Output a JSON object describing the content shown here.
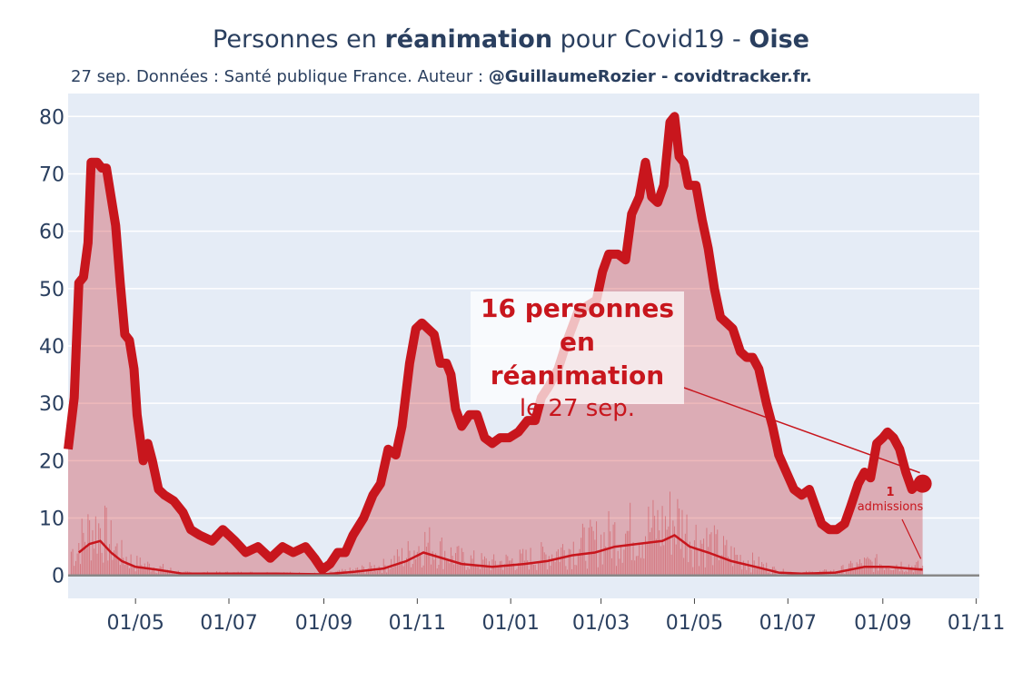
{
  "header": {
    "title_pre": "Personnes en ",
    "title_bold1": "réanimation",
    "title_mid": " pour Covid19 - ",
    "title_bold2": "Oise",
    "subtitle_pre": "27 sep. Données : Santé publique France. Auteur : ",
    "subtitle_bold": "@GuillaumeRozier - covidtracker.fr."
  },
  "annotation": {
    "line1": "16 personnes",
    "line2": "en réanimation",
    "line3": "le 27 sep.",
    "admissions_value": "1",
    "admissions_label": "admissions"
  },
  "colors": {
    "plot_bg": "#e5ecf6",
    "grid": "#ffffff",
    "line": "#c8161d",
    "fill": "rgba(200,22,29,0.30)",
    "zero_line": "#888888"
  },
  "chart_data": {
    "type": "area",
    "ylim": [
      -4,
      84
    ],
    "xlim": [
      "2020-03-18",
      "2021-11-03"
    ],
    "y_ticks": [
      0,
      10,
      20,
      30,
      40,
      50,
      60,
      70,
      80
    ],
    "x_ticks": [
      {
        "date": "2020-05-01",
        "label": "01/05"
      },
      {
        "date": "2020-07-01",
        "label": "01/07"
      },
      {
        "date": "2020-09-01",
        "label": "01/09"
      },
      {
        "date": "2020-11-01",
        "label": "01/11"
      },
      {
        "date": "2021-01-01",
        "label": "01/01"
      },
      {
        "date": "2021-03-01",
        "label": "01/03"
      },
      {
        "date": "2021-05-01",
        "label": "01/05"
      },
      {
        "date": "2021-07-01",
        "label": "01/07"
      },
      {
        "date": "2021-09-01",
        "label": "01/09"
      },
      {
        "date": "2021-11-01",
        "label": "01/11"
      }
    ],
    "series": [
      {
        "role": "reanimation",
        "points": [
          [
            "2020-03-18",
            22
          ],
          [
            "2020-03-22",
            31
          ],
          [
            "2020-03-25",
            51
          ],
          [
            "2020-03-28",
            52
          ],
          [
            "2020-03-31",
            58
          ],
          [
            "2020-04-02",
            72
          ],
          [
            "2020-04-06",
            72
          ],
          [
            "2020-04-09",
            71
          ],
          [
            "2020-04-12",
            71
          ],
          [
            "2020-04-15",
            66
          ],
          [
            "2020-04-18",
            61
          ],
          [
            "2020-04-21",
            51
          ],
          [
            "2020-04-24",
            42
          ],
          [
            "2020-04-27",
            41
          ],
          [
            "2020-04-30",
            36
          ],
          [
            "2020-05-02",
            28
          ],
          [
            "2020-05-06",
            20
          ],
          [
            "2020-05-09",
            23
          ],
          [
            "2020-05-12",
            20
          ],
          [
            "2020-05-16",
            15
          ],
          [
            "2020-05-20",
            14
          ],
          [
            "2020-05-26",
            13
          ],
          [
            "2020-06-01",
            11
          ],
          [
            "2020-06-06",
            8
          ],
          [
            "2020-06-12",
            7
          ],
          [
            "2020-06-20",
            6
          ],
          [
            "2020-06-27",
            8
          ],
          [
            "2020-07-05",
            6
          ],
          [
            "2020-07-12",
            4
          ],
          [
            "2020-07-20",
            5
          ],
          [
            "2020-07-28",
            3
          ],
          [
            "2020-08-05",
            5
          ],
          [
            "2020-08-12",
            4
          ],
          [
            "2020-08-20",
            5
          ],
          [
            "2020-08-26",
            3
          ],
          [
            "2020-08-31",
            1
          ],
          [
            "2020-09-05",
            2
          ],
          [
            "2020-09-10",
            4
          ],
          [
            "2020-09-15",
            4
          ],
          [
            "2020-09-20",
            7
          ],
          [
            "2020-09-27",
            10
          ],
          [
            "2020-10-03",
            14
          ],
          [
            "2020-10-08",
            16
          ],
          [
            "2020-10-13",
            22
          ],
          [
            "2020-10-18",
            21
          ],
          [
            "2020-10-22",
            26
          ],
          [
            "2020-10-27",
            37
          ],
          [
            "2020-10-31",
            43
          ],
          [
            "2020-11-04",
            44
          ],
          [
            "2020-11-08",
            43
          ],
          [
            "2020-11-12",
            42
          ],
          [
            "2020-11-16",
            37
          ],
          [
            "2020-11-20",
            37
          ],
          [
            "2020-11-23",
            35
          ],
          [
            "2020-11-26",
            29
          ],
          [
            "2020-11-30",
            26
          ],
          [
            "2020-12-05",
            28
          ],
          [
            "2020-12-10",
            28
          ],
          [
            "2020-12-15",
            24
          ],
          [
            "2020-12-20",
            23
          ],
          [
            "2020-12-25",
            24
          ],
          [
            "2020-12-31",
            24
          ],
          [
            "2021-01-06",
            25
          ],
          [
            "2021-01-12",
            27
          ],
          [
            "2021-01-17",
            27
          ],
          [
            "2021-01-21",
            31
          ],
          [
            "2021-01-26",
            33
          ],
          [
            "2021-02-01",
            36
          ],
          [
            "2021-02-07",
            41
          ],
          [
            "2021-02-14",
            46
          ],
          [
            "2021-02-20",
            47
          ],
          [
            "2021-02-26",
            48
          ],
          [
            "2021-03-02",
            53
          ],
          [
            "2021-03-06",
            56
          ],
          [
            "2021-03-12",
            56
          ],
          [
            "2021-03-17",
            55
          ],
          [
            "2021-03-21",
            63
          ],
          [
            "2021-03-26",
            66
          ],
          [
            "2021-03-30",
            72
          ],
          [
            "2021-04-03",
            66
          ],
          [
            "2021-04-07",
            65
          ],
          [
            "2021-04-11",
            68
          ],
          [
            "2021-04-15",
            79
          ],
          [
            "2021-04-18",
            80
          ],
          [
            "2021-04-21",
            73
          ],
          [
            "2021-04-24",
            72
          ],
          [
            "2021-04-27",
            68
          ],
          [
            "2021-05-02",
            68
          ],
          [
            "2021-05-06",
            62
          ],
          [
            "2021-05-10",
            57
          ],
          [
            "2021-05-14",
            50
          ],
          [
            "2021-05-18",
            45
          ],
          [
            "2021-05-22",
            44
          ],
          [
            "2021-05-26",
            43
          ],
          [
            "2021-05-31",
            39
          ],
          [
            "2021-06-04",
            38
          ],
          [
            "2021-06-08",
            38
          ],
          [
            "2021-06-12",
            36
          ],
          [
            "2021-06-17",
            30
          ],
          [
            "2021-06-21",
            26
          ],
          [
            "2021-06-25",
            21
          ],
          [
            "2021-06-30",
            18
          ],
          [
            "2021-07-05",
            15
          ],
          [
            "2021-07-10",
            14
          ],
          [
            "2021-07-15",
            15
          ],
          [
            "2021-07-19",
            12
          ],
          [
            "2021-07-23",
            9
          ],
          [
            "2021-07-28",
            8
          ],
          [
            "2021-08-02",
            8
          ],
          [
            "2021-08-07",
            9
          ],
          [
            "2021-08-11",
            12
          ],
          [
            "2021-08-16",
            16
          ],
          [
            "2021-08-20",
            18
          ],
          [
            "2021-08-24",
            17
          ],
          [
            "2021-08-28",
            23
          ],
          [
            "2021-09-01",
            24
          ],
          [
            "2021-09-04",
            25
          ],
          [
            "2021-09-08",
            24
          ],
          [
            "2021-09-12",
            22
          ],
          [
            "2021-09-16",
            18
          ],
          [
            "2021-09-20",
            15
          ],
          [
            "2021-09-24",
            16
          ],
          [
            "2021-09-27",
            16
          ]
        ]
      },
      {
        "role": "admissions (moyenne)",
        "points": [
          [
            "2020-03-25",
            4
          ],
          [
            "2020-04-01",
            5.5
          ],
          [
            "2020-04-08",
            6
          ],
          [
            "2020-04-15",
            4
          ],
          [
            "2020-04-22",
            2.5
          ],
          [
            "2020-05-01",
            1.5
          ],
          [
            "2020-05-15",
            1
          ],
          [
            "2020-06-01",
            0.3
          ],
          [
            "2020-07-01",
            0.3
          ],
          [
            "2020-08-01",
            0.3
          ],
          [
            "2020-09-01",
            0.2
          ],
          [
            "2020-09-20",
            0.6
          ],
          [
            "2020-10-10",
            1.2
          ],
          [
            "2020-10-25",
            2.5
          ],
          [
            "2020-11-05",
            4
          ],
          [
            "2020-11-15",
            3.2
          ],
          [
            "2020-11-30",
            2
          ],
          [
            "2020-12-20",
            1.5
          ],
          [
            "2021-01-10",
            2
          ],
          [
            "2021-01-25",
            2.5
          ],
          [
            "2021-02-10",
            3.5
          ],
          [
            "2021-02-25",
            4
          ],
          [
            "2021-03-10",
            5
          ],
          [
            "2021-03-25",
            5.5
          ],
          [
            "2021-04-10",
            6
          ],
          [
            "2021-04-18",
            7
          ],
          [
            "2021-04-28",
            5
          ],
          [
            "2021-05-10",
            4
          ],
          [
            "2021-05-25",
            2.5
          ],
          [
            "2021-06-10",
            1.5
          ],
          [
            "2021-06-25",
            0.5
          ],
          [
            "2021-07-10",
            0.3
          ],
          [
            "2021-08-01",
            0.5
          ],
          [
            "2021-08-20",
            1.5
          ],
          [
            "2021-09-05",
            1.5
          ],
          [
            "2021-09-27",
            1
          ]
        ]
      }
    ],
    "last_point": {
      "date": "2021-09-27",
      "value": 16
    },
    "admissions_last": {
      "date": "2021-09-27",
      "value": 1
    }
  }
}
